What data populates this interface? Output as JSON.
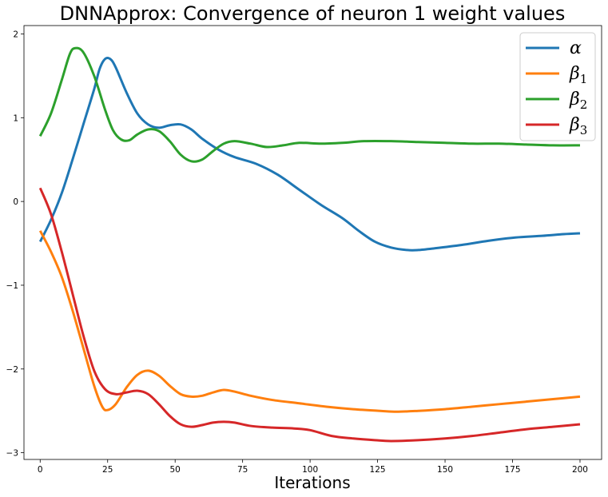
{
  "chart_data": {
    "type": "line",
    "title": "DNNApprox: Convergence of neuron 1 weight values",
    "xlabel": "Iterations",
    "ylabel": "",
    "xlim": [
      -6,
      208
    ],
    "ylim": [
      -3.08,
      2.1
    ],
    "xticks": [
      0,
      25,
      50,
      75,
      100,
      125,
      150,
      175,
      200
    ],
    "yticks": [
      -3,
      -2,
      -1,
      0,
      1,
      2
    ],
    "grid": false,
    "legend_position": "top-right",
    "series": [
      {
        "name": "α",
        "name_base": "α",
        "name_sub": "",
        "color": "#1f77b4",
        "points": [
          [
            0,
            -0.48
          ],
          [
            4,
            -0.22
          ],
          [
            8,
            0.1
          ],
          [
            12,
            0.5
          ],
          [
            16,
            0.92
          ],
          [
            20,
            1.34
          ],
          [
            22,
            1.58
          ],
          [
            24,
            1.7
          ],
          [
            26,
            1.7
          ],
          [
            28,
            1.6
          ],
          [
            32,
            1.3
          ],
          [
            36,
            1.05
          ],
          [
            40,
            0.92
          ],
          [
            44,
            0.88
          ],
          [
            48,
            0.91
          ],
          [
            52,
            0.92
          ],
          [
            56,
            0.86
          ],
          [
            60,
            0.75
          ],
          [
            66,
            0.62
          ],
          [
            72,
            0.53
          ],
          [
            80,
            0.45
          ],
          [
            88,
            0.32
          ],
          [
            96,
            0.14
          ],
          [
            104,
            -0.04
          ],
          [
            112,
            -0.2
          ],
          [
            118,
            -0.35
          ],
          [
            124,
            -0.48
          ],
          [
            130,
            -0.55
          ],
          [
            136,
            -0.58
          ],
          [
            140,
            -0.58
          ],
          [
            146,
            -0.56
          ],
          [
            156,
            -0.52
          ],
          [
            166,
            -0.47
          ],
          [
            176,
            -0.43
          ],
          [
            186,
            -0.41
          ],
          [
            194,
            -0.39
          ],
          [
            200,
            -0.38
          ]
        ]
      },
      {
        "name": "β1",
        "name_base": "β",
        "name_sub": "1",
        "color": "#ff7f0e",
        "points": [
          [
            0,
            -0.35
          ],
          [
            4,
            -0.6
          ],
          [
            8,
            -0.9
          ],
          [
            12,
            -1.3
          ],
          [
            16,
            -1.75
          ],
          [
            20,
            -2.2
          ],
          [
            23,
            -2.45
          ],
          [
            25,
            -2.49
          ],
          [
            28,
            -2.42
          ],
          [
            32,
            -2.22
          ],
          [
            36,
            -2.07
          ],
          [
            40,
            -2.02
          ],
          [
            44,
            -2.08
          ],
          [
            48,
            -2.2
          ],
          [
            52,
            -2.3
          ],
          [
            56,
            -2.33
          ],
          [
            60,
            -2.32
          ],
          [
            64,
            -2.28
          ],
          [
            68,
            -2.25
          ],
          [
            72,
            -2.27
          ],
          [
            78,
            -2.32
          ],
          [
            86,
            -2.37
          ],
          [
            96,
            -2.41
          ],
          [
            106,
            -2.45
          ],
          [
            116,
            -2.48
          ],
          [
            126,
            -2.5
          ],
          [
            132,
            -2.51
          ],
          [
            140,
            -2.5
          ],
          [
            150,
            -2.48
          ],
          [
            160,
            -2.45
          ],
          [
            170,
            -2.42
          ],
          [
            180,
            -2.39
          ],
          [
            190,
            -2.36
          ],
          [
            200,
            -2.33
          ]
        ]
      },
      {
        "name": "β2",
        "name_base": "β",
        "name_sub": "2",
        "color": "#2ca02c",
        "points": [
          [
            0,
            0.78
          ],
          [
            4,
            1.05
          ],
          [
            8,
            1.45
          ],
          [
            11,
            1.76
          ],
          [
            13,
            1.83
          ],
          [
            16,
            1.78
          ],
          [
            20,
            1.5
          ],
          [
            24,
            1.1
          ],
          [
            27,
            0.85
          ],
          [
            30,
            0.74
          ],
          [
            33,
            0.73
          ],
          [
            36,
            0.8
          ],
          [
            40,
            0.86
          ],
          [
            44,
            0.84
          ],
          [
            48,
            0.72
          ],
          [
            52,
            0.56
          ],
          [
            56,
            0.48
          ],
          [
            60,
            0.5
          ],
          [
            64,
            0.6
          ],
          [
            68,
            0.69
          ],
          [
            72,
            0.72
          ],
          [
            78,
            0.69
          ],
          [
            84,
            0.65
          ],
          [
            90,
            0.67
          ],
          [
            96,
            0.7
          ],
          [
            104,
            0.69
          ],
          [
            112,
            0.7
          ],
          [
            120,
            0.72
          ],
          [
            130,
            0.72
          ],
          [
            140,
            0.71
          ],
          [
            150,
            0.7
          ],
          [
            160,
            0.69
          ],
          [
            170,
            0.69
          ],
          [
            180,
            0.68
          ],
          [
            190,
            0.67
          ],
          [
            200,
            0.67
          ]
        ]
      },
      {
        "name": "β3",
        "name_base": "β",
        "name_sub": "3",
        "color": "#d62728",
        "points": [
          [
            0,
            0.16
          ],
          [
            4,
            -0.15
          ],
          [
            8,
            -0.6
          ],
          [
            12,
            -1.1
          ],
          [
            16,
            -1.6
          ],
          [
            20,
            -2.02
          ],
          [
            24,
            -2.24
          ],
          [
            28,
            -2.3
          ],
          [
            32,
            -2.28
          ],
          [
            36,
            -2.26
          ],
          [
            40,
            -2.3
          ],
          [
            44,
            -2.42
          ],
          [
            48,
            -2.56
          ],
          [
            52,
            -2.66
          ],
          [
            56,
            -2.69
          ],
          [
            60,
            -2.67
          ],
          [
            64,
            -2.64
          ],
          [
            68,
            -2.63
          ],
          [
            72,
            -2.64
          ],
          [
            78,
            -2.68
          ],
          [
            86,
            -2.7
          ],
          [
            94,
            -2.71
          ],
          [
            100,
            -2.73
          ],
          [
            108,
            -2.8
          ],
          [
            116,
            -2.83
          ],
          [
            124,
            -2.85
          ],
          [
            130,
            -2.86
          ],
          [
            140,
            -2.85
          ],
          [
            150,
            -2.83
          ],
          [
            160,
            -2.8
          ],
          [
            170,
            -2.76
          ],
          [
            180,
            -2.72
          ],
          [
            190,
            -2.69
          ],
          [
            200,
            -2.66
          ]
        ]
      }
    ]
  }
}
